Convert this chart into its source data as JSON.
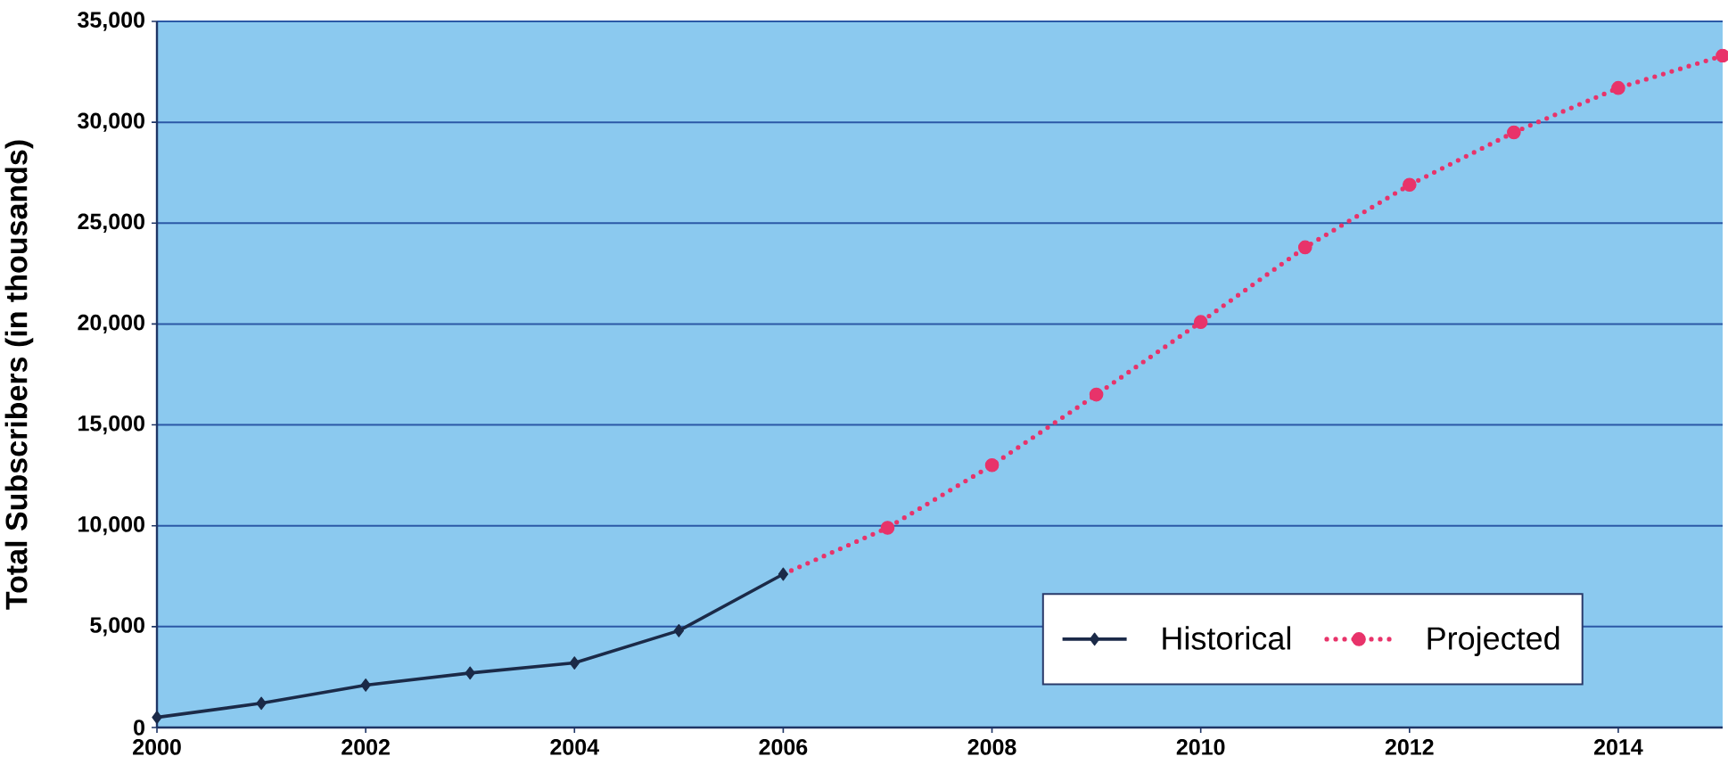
{
  "chart_data": {
    "type": "line",
    "ylabel": "Total Subscribers (in thousands)",
    "series": [
      {
        "name": "Historical",
        "color": "#1b2a48",
        "marker": "diamond",
        "line_style": "solid",
        "x": [
          2000,
          2001,
          2002,
          2003,
          2004,
          2005,
          2006
        ],
        "values": [
          500,
          1200,
          2100,
          2700,
          3200,
          4800,
          7600
        ]
      },
      {
        "name": "Projected",
        "color": "#e8336a",
        "marker": "circle",
        "line_style": "dotted",
        "x": [
          2006,
          2007,
          2008,
          2009,
          2010,
          2011,
          2012,
          2013,
          2014,
          2015
        ],
        "values": [
          7600,
          9900,
          13000,
          16500,
          20100,
          23800,
          26900,
          29500,
          31700,
          33300
        ]
      }
    ],
    "xlim": [
      2000,
      2015
    ],
    "ylim": [
      0,
      35000
    ],
    "xticks": [
      2000,
      2002,
      2004,
      2006,
      2008,
      2010,
      2012,
      2014
    ],
    "yticks": [
      0,
      {
        "value": 5000,
        "label": "5,000"
      },
      {
        "value": 10000,
        "label": "10,000"
      },
      {
        "value": 15000,
        "label": "15,000"
      },
      {
        "value": 20000,
        "label": "20,000"
      },
      {
        "value": 25000,
        "label": "25,000"
      },
      {
        "value": 30000,
        "label": "30,000"
      },
      {
        "value": 35000,
        "label": "35,000"
      }
    ],
    "grid": "y",
    "legend": "bottom right"
  }
}
